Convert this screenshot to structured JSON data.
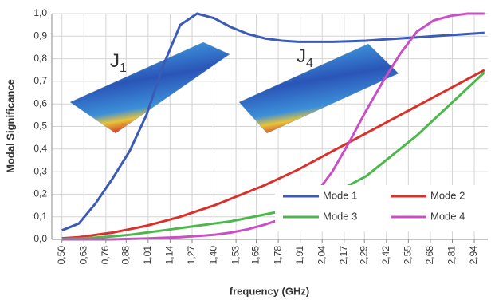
{
  "chart_data": {
    "type": "line",
    "y_label": "Modal Significance",
    "x_label": "frequency (GHz)",
    "annotations": [
      {
        "text": "J",
        "subscript": "1"
      },
      {
        "text": "J",
        "subscript": "4"
      }
    ],
    "x": [
      0.5,
      0.6,
      0.7,
      0.8,
      0.9,
      1.0,
      1.1,
      1.2,
      1.3,
      1.4,
      1.5,
      1.6,
      1.7,
      1.8,
      1.9,
      2.0,
      2.1,
      2.2,
      2.3,
      2.4,
      2.5,
      2.6,
      2.7,
      2.8,
      2.9,
      3.0
    ],
    "series": [
      {
        "name": "Mode 1",
        "color": "#3b5bb5",
        "values": [
          0.04,
          0.07,
          0.16,
          0.27,
          0.39,
          0.55,
          0.77,
          0.95,
          1.0,
          0.98,
          0.94,
          0.91,
          0.89,
          0.88,
          0.875,
          0.875,
          0.875,
          0.877,
          0.88,
          0.885,
          0.89,
          0.895,
          0.9,
          0.905,
          0.91,
          0.915
        ]
      },
      {
        "name": "Mode 2",
        "color": "#d9302a",
        "values": [
          0.005,
          0.01,
          0.02,
          0.03,
          0.045,
          0.06,
          0.08,
          0.1,
          0.125,
          0.15,
          0.18,
          0.21,
          0.24,
          0.275,
          0.31,
          0.35,
          0.39,
          0.43,
          0.47,
          0.51,
          0.55,
          0.59,
          0.63,
          0.67,
          0.71,
          0.75
        ]
      },
      {
        "name": "Mode 3",
        "color": "#4cb84c",
        "values": [
          0.002,
          0.004,
          0.008,
          0.013,
          0.02,
          0.03,
          0.04,
          0.05,
          0.06,
          0.07,
          0.08,
          0.095,
          0.11,
          0.125,
          0.15,
          0.17,
          0.2,
          0.24,
          0.28,
          0.34,
          0.4,
          0.46,
          0.53,
          0.6,
          0.67,
          0.74
        ]
      },
      {
        "name": "Mode 4",
        "color": "#c94fc4",
        "values": [
          0,
          0,
          0,
          0,
          0.002,
          0.004,
          0.007,
          0.01,
          0.015,
          0.02,
          0.03,
          0.045,
          0.065,
          0.09,
          0.13,
          0.2,
          0.3,
          0.43,
          0.57,
          0.7,
          0.82,
          0.92,
          0.97,
          0.99,
          1.0,
          1.0
        ]
      }
    ],
    "xlim": [
      0.44,
      3.02
    ],
    "xticks": [
      {
        "value": 0.5,
        "label": "0,50"
      },
      {
        "value": 0.63,
        "label": "0,63"
      },
      {
        "value": 0.76,
        "label": "0,76"
      },
      {
        "value": 0.88,
        "label": "0,88"
      },
      {
        "value": 1.01,
        "label": "1,01"
      },
      {
        "value": 1.14,
        "label": "1,14"
      },
      {
        "value": 1.27,
        "label": "1,27"
      },
      {
        "value": 1.4,
        "label": "1,40"
      },
      {
        "value": 1.53,
        "label": "1,53"
      },
      {
        "value": 1.65,
        "label": "1,65"
      },
      {
        "value": 1.78,
        "label": "1,78"
      },
      {
        "value": 1.91,
        "label": "1,91"
      },
      {
        "value": 2.04,
        "label": "2,04"
      },
      {
        "value": 2.17,
        "label": "2,17"
      },
      {
        "value": 2.29,
        "label": "2,29"
      },
      {
        "value": 2.42,
        "label": "2,42"
      },
      {
        "value": 2.55,
        "label": "2,55"
      },
      {
        "value": 2.68,
        "label": "2,68"
      },
      {
        "value": 2.81,
        "label": "2,81"
      },
      {
        "value": 2.94,
        "label": "2,94"
      }
    ],
    "ylim": [
      0,
      1
    ],
    "yticks": [
      {
        "value": 0,
        "label": "0,0"
      },
      {
        "value": 0.1,
        "label": "0,1"
      },
      {
        "value": 0.2,
        "label": "0,2"
      },
      {
        "value": 0.3,
        "label": "0,3"
      },
      {
        "value": 0.4,
        "label": "0,4"
      },
      {
        "value": 0.5,
        "label": "0,5"
      },
      {
        "value": 0.6,
        "label": "0,6"
      },
      {
        "value": 0.7,
        "label": "0,7"
      },
      {
        "value": 0.8,
        "label": "0,8"
      },
      {
        "value": 0.9,
        "label": "0,9"
      },
      {
        "value": 1,
        "label": "1,0"
      }
    ],
    "grid": true,
    "legend": "bottom-right"
  }
}
